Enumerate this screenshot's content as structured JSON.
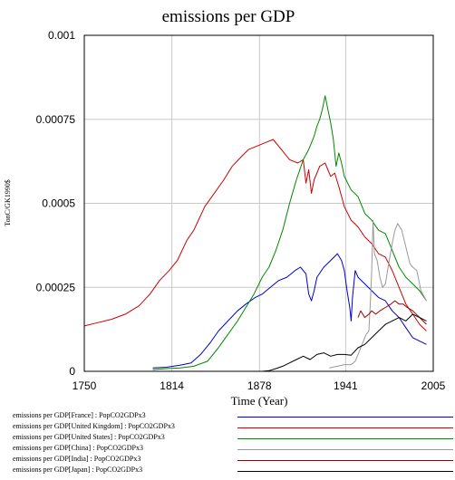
{
  "chart_data": {
    "type": "line",
    "title": "emissions per GDP",
    "xlabel": "Time (Year)",
    "ylabel": "TonC/GK1990$",
    "xlim": [
      1750,
      2005
    ],
    "ylim": [
      0,
      0.001
    ],
    "x_ticks": [
      1750,
      1814,
      1878,
      1941,
      2005
    ],
    "x_tick_labels": [
      "1750",
      "1814",
      "1878",
      "1941",
      "2005"
    ],
    "y_ticks": [
      0,
      0.00025,
      0.0005,
      0.00075,
      0.001
    ],
    "y_tick_labels": [
      "0",
      "0.00025",
      "0.0005",
      "0.00075",
      "0.001"
    ],
    "grid": true,
    "legend_position": "bottom",
    "series": [
      {
        "name": "emissions per GDP[France] : PopCO2GDPx3",
        "color": "#0000cc",
        "x": [
          1800,
          1810,
          1820,
          1828,
          1835,
          1842,
          1848,
          1855,
          1862,
          1868,
          1875,
          1880,
          1886,
          1892,
          1898,
          1904,
          1908,
          1912,
          1914,
          1916,
          1918,
          1920,
          1925,
          1930,
          1935,
          1938,
          1940,
          1942,
          1944,
          1945,
          1946,
          1948,
          1950,
          1955,
          1960,
          1965,
          1970,
          1975,
          1980,
          1985,
          1990,
          1995,
          2000
        ],
        "y": [
          1e-05,
          1.2e-05,
          1.8e-05,
          2.5e-05,
          5e-05,
          8.5e-05,
          0.00012,
          0.00015,
          0.00018,
          0.0002,
          0.00022,
          0.00023,
          0.00025,
          0.00027,
          0.00028,
          0.0003,
          0.00031,
          0.00029,
          0.00023,
          0.00021,
          0.00024,
          0.00028,
          0.00031,
          0.00033,
          0.00035,
          0.00033,
          0.0003,
          0.00024,
          0.00019,
          0.00015,
          0.00022,
          0.0003,
          0.00028,
          0.00026,
          0.00024,
          0.00022,
          0.00021,
          0.00018,
          0.00016,
          0.00013,
          0.0001,
          9e-05,
          8e-05
        ]
      },
      {
        "name": "emissions per GDP[United Kingdom] : PopCO2GDPx3",
        "color": "#cc0000",
        "x": [
          1750,
          1760,
          1770,
          1780,
          1790,
          1798,
          1805,
          1812,
          1818,
          1825,
          1830,
          1838,
          1845,
          1852,
          1858,
          1865,
          1870,
          1876,
          1882,
          1888,
          1894,
          1900,
          1906,
          1910,
          1912,
          1914,
          1916,
          1918,
          1922,
          1926,
          1930,
          1933,
          1936,
          1940,
          1945,
          1950,
          1955,
          1960,
          1965,
          1970,
          1975,
          1980,
          1985,
          1990,
          1995,
          2000
        ],
        "y": [
          0.000135,
          0.000145,
          0.000155,
          0.00017,
          0.000195,
          0.00023,
          0.00027,
          0.0003,
          0.00033,
          0.00039,
          0.00042,
          0.00049,
          0.00053,
          0.00057,
          0.00061,
          0.00064,
          0.00066,
          0.00067,
          0.00068,
          0.00069,
          0.00066,
          0.00063,
          0.00062,
          0.00063,
          0.00056,
          0.0006,
          0.00053,
          0.00057,
          0.00061,
          0.00062,
          0.00058,
          0.00059,
          0.00055,
          0.00049,
          0.00045,
          0.00043,
          0.0004,
          0.00038,
          0.00035,
          0.00034,
          0.0003,
          0.00025,
          0.0002,
          0.00017,
          0.00014,
          0.00012
        ]
      },
      {
        "name": "emissions per GDP[United States] : PopCO2GDPx3",
        "color": "#008800",
        "x": [
          1800,
          1810,
          1820,
          1830,
          1840,
          1848,
          1855,
          1862,
          1868,
          1874,
          1880,
          1885,
          1890,
          1895,
          1900,
          1905,
          1910,
          1914,
          1918,
          1920,
          1922,
          1924,
          1926,
          1928,
          1930,
          1932,
          1934,
          1936,
          1938,
          1940,
          1945,
          1950,
          1955,
          1960,
          1965,
          1970,
          1975,
          1980,
          1985,
          1990,
          1995,
          2000
        ],
        "y": [
          5e-06,
          8e-06,
          1e-05,
          1.5e-05,
          3e-05,
          7e-05,
          0.00011,
          0.00015,
          0.00019,
          0.00023,
          0.00028,
          0.00031,
          0.00036,
          0.00042,
          0.0005,
          0.00057,
          0.00063,
          0.00066,
          0.0007,
          0.00073,
          0.00075,
          0.00078,
          0.00082,
          0.00078,
          0.00074,
          0.00069,
          0.00061,
          0.00065,
          0.00062,
          0.00058,
          0.00054,
          0.00052,
          0.00047,
          0.00045,
          0.00042,
          0.00041,
          0.00036,
          0.00031,
          0.00028,
          0.00026,
          0.00024,
          0.00021
        ]
      },
      {
        "name": "emissions per GDP[China] : PopCO2GDPx3",
        "color": "#999999",
        "x": [
          1929,
          1935,
          1940,
          1945,
          1948,
          1950,
          1952,
          1954,
          1956,
          1958,
          1959,
          1960,
          1961,
          1962,
          1964,
          1966,
          1968,
          1970,
          1972,
          1975,
          1977,
          1979,
          1982,
          1985,
          1988,
          1990,
          1993,
          1996,
          2000
        ],
        "y": [
          1e-05,
          1.5e-05,
          2e-05,
          2e-05,
          3e-05,
          5e-05,
          7e-05,
          9e-05,
          0.00011,
          0.00012,
          0.0002,
          0.0003,
          0.00045,
          0.00035,
          0.00033,
          0.00028,
          0.00025,
          0.00026,
          0.00031,
          0.00038,
          0.00042,
          0.00044,
          0.00042,
          0.00037,
          0.00032,
          0.00031,
          0.0003,
          0.00024,
          0.00021
        ]
      },
      {
        "name": "emissions per GDP[India] : PopCO2GDPx3",
        "color": "#990000",
        "x": [
          1950,
          1952,
          1955,
          1958,
          1960,
          1963,
          1966,
          1970,
          1974,
          1977,
          1980,
          1983,
          1986,
          1990,
          1995,
          2000
        ],
        "y": [
          0.00016,
          0.00018,
          0.00016,
          0.00017,
          0.00018,
          0.00017,
          0.00018,
          0.00019,
          0.0002,
          0.00021,
          0.0002,
          0.0002,
          0.00019,
          0.00018,
          0.00016,
          0.00014
        ]
      },
      {
        "name": "emissions per GDP[Japan] : PopCO2GDPx3",
        "color": "#000000",
        "x": [
          1880,
          1885,
          1890,
          1895,
          1900,
          1905,
          1910,
          1915,
          1920,
          1925,
          1930,
          1935,
          1940,
          1945,
          1950,
          1955,
          1960,
          1965,
          1970,
          1975,
          1980,
          1985,
          1990,
          1995,
          2000
        ],
        "y": [
          0.0,
          2e-06,
          8e-06,
          1.5e-05,
          2.5e-05,
          3.5e-05,
          4.5e-05,
          3.5e-05,
          5e-05,
          5.5e-05,
          4.5e-05,
          5e-05,
          5e-05,
          4.8e-05,
          7e-05,
          8e-05,
          0.0001,
          0.00012,
          0.00014,
          0.00015,
          0.00016,
          0.00015,
          0.00017,
          0.00016,
          0.00015
        ]
      }
    ]
  }
}
